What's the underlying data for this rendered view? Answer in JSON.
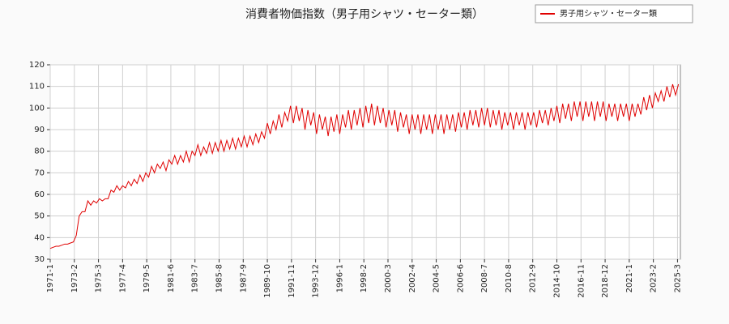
{
  "chart_data": {
    "type": "line",
    "title": "消費者物価指数（男子用シャツ・セーター類）",
    "x": [
      "1971-1",
      "1971-4",
      "1971-7",
      "1971-10",
      "1972-1",
      "1972-4",
      "1972-7",
      "1972-10",
      "1973-1",
      "1973-4",
      "1973-7",
      "1973-10",
      "1974-1",
      "1974-4",
      "1974-7",
      "1974-10",
      "1975-1",
      "1975-4",
      "1975-7",
      "1975-10",
      "1976-1",
      "1976-4",
      "1976-7",
      "1976-10",
      "1977-1",
      "1977-4",
      "1977-7",
      "1977-10",
      "1978-1",
      "1978-4",
      "1978-7",
      "1978-10",
      "1979-1",
      "1979-4",
      "1979-7",
      "1979-10",
      "1980-1",
      "1980-4",
      "1980-7",
      "1980-10",
      "1981-1",
      "1981-4",
      "1981-7",
      "1981-10",
      "1982-1",
      "1982-4",
      "1982-7",
      "1982-10",
      "1983-1",
      "1983-4",
      "1983-7",
      "1983-10",
      "1984-1",
      "1984-4",
      "1984-7",
      "1984-10",
      "1985-1",
      "1985-4",
      "1985-7",
      "1985-10",
      "1986-1",
      "1986-4",
      "1986-7",
      "1986-10",
      "1987-1",
      "1987-4",
      "1987-7",
      "1987-10",
      "1988-1",
      "1988-4",
      "1988-7",
      "1988-10",
      "1989-1",
      "1989-4",
      "1989-7",
      "1989-10",
      "1990-1",
      "1990-4",
      "1990-7",
      "1990-10",
      "1991-1",
      "1991-4",
      "1991-7",
      "1991-10",
      "1992-1",
      "1992-4",
      "1992-7",
      "1992-10",
      "1993-1",
      "1993-4",
      "1993-7",
      "1993-10",
      "1994-1",
      "1994-4",
      "1994-7",
      "1994-10",
      "1995-1",
      "1995-4",
      "1995-7",
      "1995-10",
      "1996-1",
      "1996-4",
      "1996-7",
      "1996-10",
      "1997-1",
      "1997-4",
      "1997-7",
      "1997-10",
      "1998-1",
      "1998-4",
      "1998-7",
      "1998-10",
      "1999-1",
      "1999-4",
      "1999-7",
      "1999-10",
      "2000-1",
      "2000-4",
      "2000-7",
      "2000-10",
      "2001-1",
      "2001-4",
      "2001-7",
      "2001-10",
      "2002-1",
      "2002-4",
      "2002-7",
      "2002-10",
      "2003-1",
      "2003-4",
      "2003-7",
      "2003-10",
      "2004-1",
      "2004-4",
      "2004-7",
      "2004-10",
      "2005-1",
      "2005-4",
      "2005-7",
      "2005-10",
      "2006-1",
      "2006-4",
      "2006-7",
      "2006-10",
      "2007-1",
      "2007-4",
      "2007-7",
      "2007-10",
      "2008-1",
      "2008-4",
      "2008-7",
      "2008-10",
      "2009-1",
      "2009-4",
      "2009-7",
      "2009-10",
      "2010-1",
      "2010-4",
      "2010-7",
      "2010-10",
      "2011-1",
      "2011-4",
      "2011-7",
      "2011-10",
      "2012-1",
      "2012-4",
      "2012-7",
      "2012-10",
      "2013-1",
      "2013-4",
      "2013-7",
      "2013-10",
      "2014-1",
      "2014-4",
      "2014-7",
      "2014-10",
      "2015-1",
      "2015-4",
      "2015-7",
      "2015-10",
      "2016-1",
      "2016-4",
      "2016-7",
      "2016-10",
      "2017-1",
      "2017-4",
      "2017-7",
      "2017-10",
      "2018-1",
      "2018-4",
      "2018-7",
      "2018-10",
      "2019-1",
      "2019-4",
      "2019-7",
      "2019-10",
      "2020-1",
      "2020-4",
      "2020-7",
      "2020-10",
      "2021-1",
      "2021-4",
      "2021-7",
      "2021-10",
      "2022-1",
      "2022-4",
      "2022-7",
      "2022-10",
      "2023-1",
      "2023-4",
      "2023-7",
      "2023-10",
      "2024-1",
      "2024-4",
      "2024-7",
      "2024-10",
      "2025-1",
      "2025-4"
    ],
    "series": [
      {
        "name": "男子用シャツ・セーター類",
        "color": "#e00000",
        "values": [
          35,
          35.5,
          36,
          36,
          36.5,
          37,
          37,
          37.5,
          38,
          41,
          50,
          52,
          52,
          57,
          55,
          57,
          56,
          58,
          57,
          58,
          58,
          62,
          61,
          64,
          62,
          64,
          63,
          66,
          64,
          67,
          65,
          69,
          66,
          70,
          68,
          73,
          70,
          74,
          72,
          75,
          71,
          76,
          74,
          78,
          74,
          78,
          75,
          80,
          75,
          80,
          78,
          83,
          78,
          82,
          79,
          84,
          79,
          84,
          80,
          85,
          80,
          85,
          81,
          86,
          81,
          86,
          82,
          87,
          82,
          87,
          83,
          88,
          84,
          89,
          86,
          93,
          88,
          94,
          90,
          97,
          91,
          98,
          94,
          101,
          93,
          101,
          94,
          100,
          90,
          99,
          92,
          98,
          88,
          97,
          90,
          96,
          87,
          96,
          89,
          97,
          88,
          97,
          91,
          99,
          90,
          99,
          92,
          100,
          91,
          101,
          93,
          102,
          92,
          101,
          93,
          100,
          91,
          99,
          92,
          99,
          89,
          98,
          91,
          97,
          88,
          97,
          90,
          97,
          88,
          97,
          90,
          97,
          88,
          97,
          90,
          97,
          88,
          97,
          90,
          97,
          89,
          98,
          91,
          98,
          90,
          99,
          92,
          99,
          91,
          100,
          92,
          100,
          91,
          99,
          92,
          99,
          90,
          98,
          92,
          98,
          90,
          98,
          92,
          98,
          90,
          98,
          92,
          98,
          91,
          99,
          93,
          99,
          92,
          100,
          94,
          101,
          93,
          102,
          95,
          102,
          94,
          103,
          96,
          103,
          94,
          103,
          96,
          103,
          94,
          103,
          96,
          103,
          94,
          102,
          96,
          102,
          94,
          102,
          96,
          102,
          94,
          102,
          96,
          102,
          97,
          105,
          99,
          106,
          100,
          107,
          103,
          108,
          103,
          110,
          105,
          111,
          106,
          111
        ]
      }
    ],
    "xlim": [
      "1971-1",
      "2025-6"
    ],
    "xticks": [
      "1971-1",
      "1973-2",
      "1975-3",
      "1977-4",
      "1979-5",
      "1981-6",
      "1983-7",
      "1985-8",
      "1987-9",
      "1989-10",
      "1991-11",
      "1993-12",
      "1996-1",
      "1998-2",
      "2000-3",
      "2002-4",
      "2004-5",
      "2006-6",
      "2008-7",
      "2010-8",
      "2012-9",
      "2014-10",
      "2016-11",
      "2018-12",
      "2021-1",
      "2023-2",
      "2025-3"
    ],
    "ylim": [
      30,
      120
    ],
    "yticks": [
      30,
      40,
      50,
      60,
      70,
      80,
      90,
      100,
      110,
      120
    ],
    "grid": true
  }
}
